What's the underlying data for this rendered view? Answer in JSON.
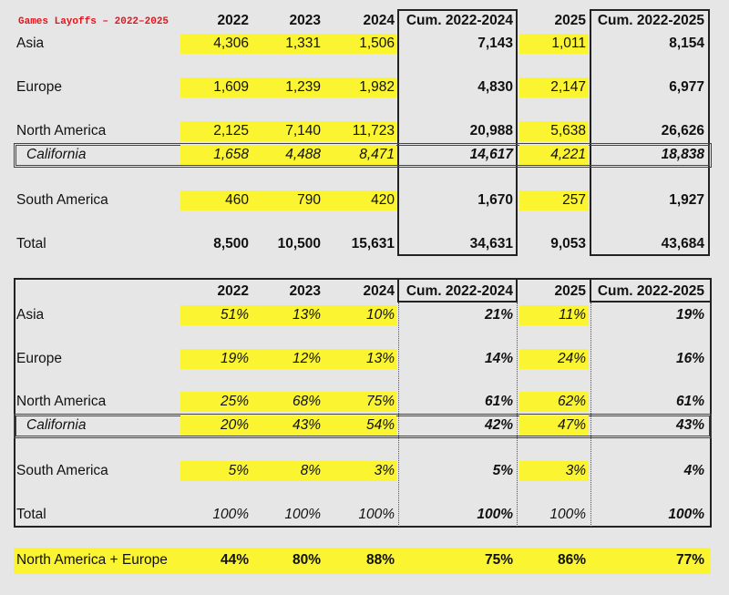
{
  "title": "Games Layoffs – 2022–2025",
  "table1": {
    "header": [
      "2022",
      "2023",
      "2024",
      "Cum. 2022-2024",
      "2025",
      "Cum. 2022-2025"
    ],
    "rows": [
      {
        "label": "Asia",
        "cells": [
          "4,306",
          "1,331",
          "1,506",
          "7,143",
          "1,011",
          "8,154"
        ]
      },
      {
        "label": "Europe",
        "cells": [
          "1,609",
          "1,239",
          "1,982",
          "4,830",
          "2,147",
          "6,977"
        ]
      },
      {
        "label": "North America",
        "cells": [
          "2,125",
          "7,140",
          "11,723",
          "20,988",
          "5,638",
          "26,626"
        ]
      },
      {
        "label": "California",
        "cells": [
          "1,658",
          "4,488",
          "8,471",
          "14,617",
          "4,221",
          "18,838"
        ]
      },
      {
        "label": "South America",
        "cells": [
          "460",
          "790",
          "420",
          "1,670",
          "257",
          "1,927"
        ]
      },
      {
        "label": "Total",
        "cells": [
          "8,500",
          "10,500",
          "15,631",
          "34,631",
          "9,053",
          "43,684"
        ]
      }
    ]
  },
  "table2": {
    "header": [
      "2022",
      "2023",
      "2024",
      "Cum. 2022-2024",
      "2025",
      "Cum. 2022-2025"
    ],
    "rows": [
      {
        "label": "Asia",
        "cells": [
          "51%",
          "13%",
          "10%",
          "21%",
          "11%",
          "19%"
        ]
      },
      {
        "label": "Europe",
        "cells": [
          "19%",
          "12%",
          "13%",
          "14%",
          "24%",
          "16%"
        ]
      },
      {
        "label": "North America",
        "cells": [
          "25%",
          "68%",
          "75%",
          "61%",
          "62%",
          "61%"
        ]
      },
      {
        "label": "California",
        "cells": [
          "20%",
          "43%",
          "54%",
          "42%",
          "47%",
          "43%"
        ]
      },
      {
        "label": "South America",
        "cells": [
          "5%",
          "8%",
          "3%",
          "5%",
          "3%",
          "4%"
        ]
      },
      {
        "label": "Total",
        "cells": [
          "100%",
          "100%",
          "100%",
          "100%",
          "100%",
          "100%"
        ]
      }
    ]
  },
  "footer": {
    "label": "North America + Europe",
    "cells": [
      "44%",
      "80%",
      "88%",
      "75%",
      "86%",
      "77%"
    ]
  }
}
